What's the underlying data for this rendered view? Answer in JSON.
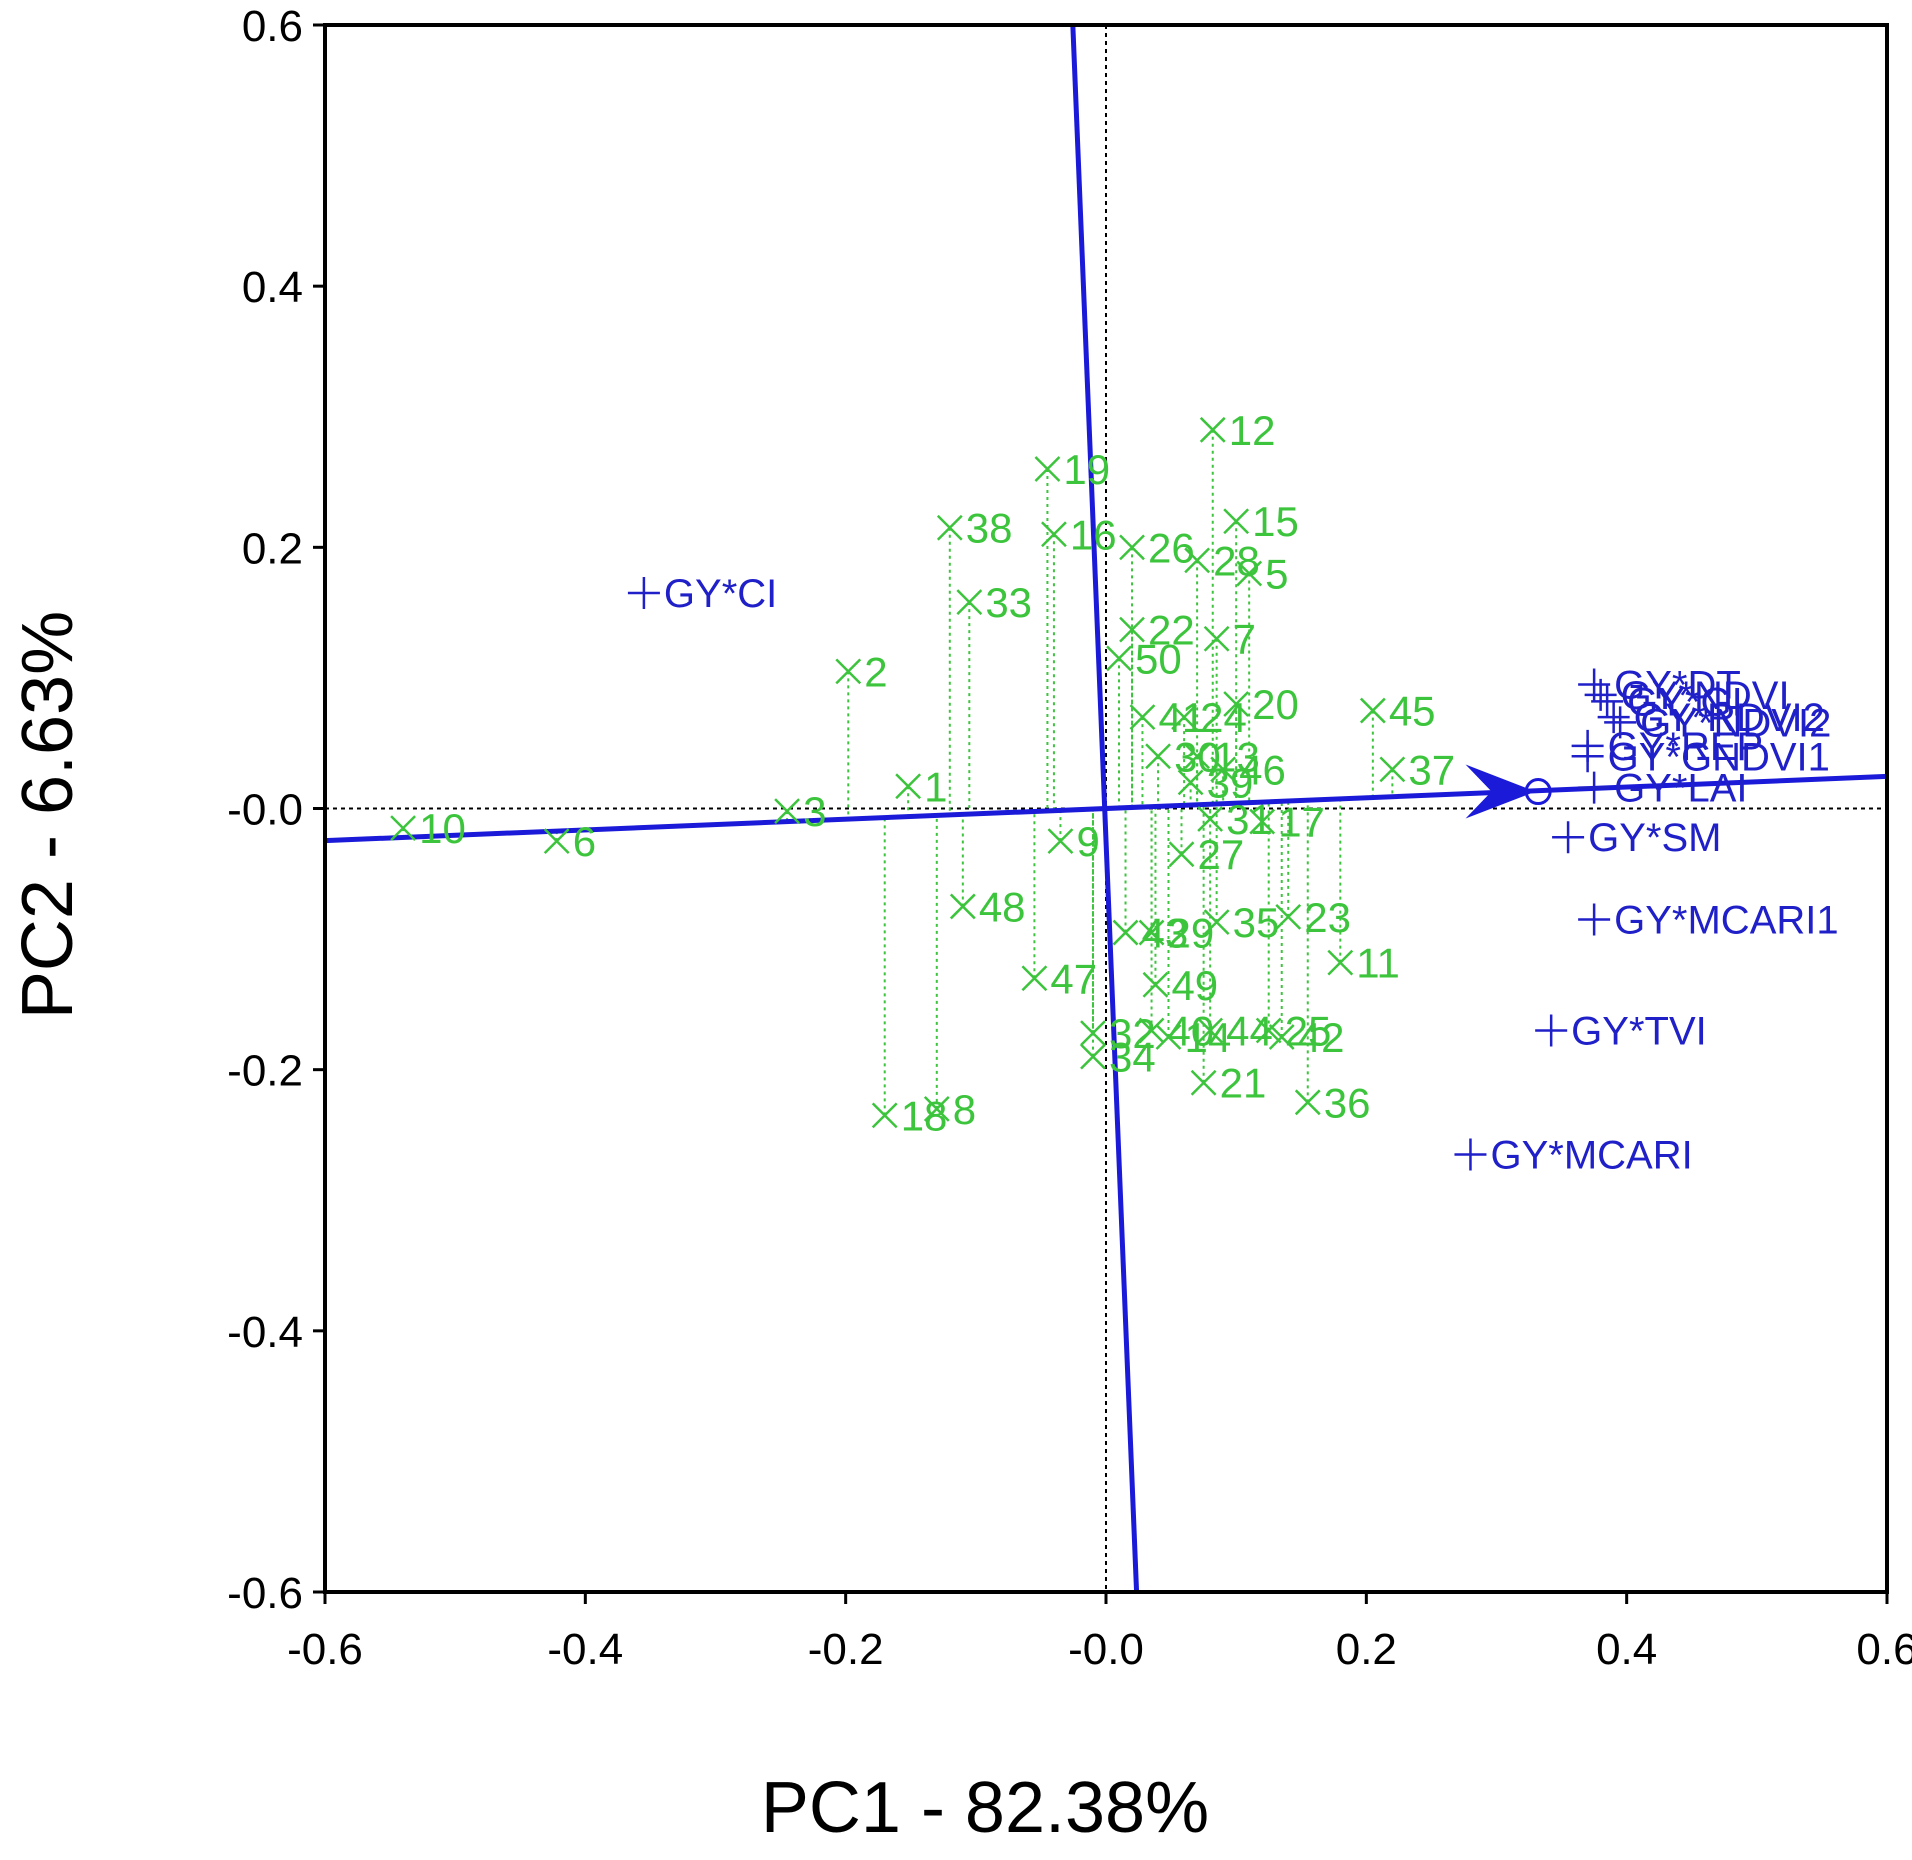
{
  "chart_data": {
    "type": "scatter",
    "subtype": "GGE biplot (discriminativeness vs. representativeness)",
    "xlabel": "PC1 - 82.38%",
    "ylabel": "PC2 - 6.63%",
    "xlim": [
      -0.6,
      0.6
    ],
    "ylim": [
      -0.6,
      0.6
    ],
    "xticks": [
      "-0.6",
      "-0.4",
      "-0.2",
      "-0.0",
      "0.2",
      "0.4",
      "0.6"
    ],
    "yticks": [
      "0.6",
      "0.4",
      "0.2",
      "-0.0",
      "-0.2",
      "-0.4",
      "-0.6"
    ],
    "xtick_values": [
      -0.6,
      -0.4,
      -0.2,
      0.0,
      0.2,
      0.4,
      0.6
    ],
    "ytick_values": [
      0.6,
      0.4,
      0.2,
      0.0,
      -0.2,
      -0.4,
      -0.6
    ],
    "colors": {
      "genotype": "#3cc43c",
      "environment": "#2020c8",
      "axis_line": "#1a1ad8",
      "frame": "#000000"
    },
    "aec": {
      "abscissa_slope": 0.041,
      "ordinate_slope": -24.5,
      "ordinate_x_offset": -0.001,
      "arrow_tip": [
        0.33,
        0.013
      ],
      "circle": [
        0.332,
        0.013
      ]
    },
    "genotypes": [
      {
        "label": "1",
        "x": -0.152,
        "y": 0.017
      },
      {
        "label": "2",
        "x": -0.198,
        "y": 0.105
      },
      {
        "label": "3",
        "x": -0.245,
        "y": -0.002
      },
      {
        "label": "5",
        "x": 0.11,
        "y": 0.18
      },
      {
        "label": "6",
        "x": -0.422,
        "y": -0.025
      },
      {
        "label": "7",
        "x": 0.085,
        "y": 0.13
      },
      {
        "label": "8",
        "x": -0.13,
        "y": -0.23
      },
      {
        "label": "9",
        "x": -0.035,
        "y": -0.025
      },
      {
        "label": "10",
        "x": -0.54,
        "y": -0.015
      },
      {
        "label": "11",
        "x": 0.18,
        "y": -0.118
      },
      {
        "label": "12",
        "x": 0.082,
        "y": 0.29
      },
      {
        "label": "13",
        "x": 0.07,
        "y": 0.04
      },
      {
        "label": "14",
        "x": 0.048,
        "y": -0.175
      },
      {
        "label": "15",
        "x": 0.1,
        "y": 0.22
      },
      {
        "label": "16",
        "x": -0.04,
        "y": 0.21
      },
      {
        "label": "17",
        "x": 0.12,
        "y": -0.01
      },
      {
        "label": "18",
        "x": -0.17,
        "y": -0.235
      },
      {
        "label": "19",
        "x": -0.045,
        "y": 0.26
      },
      {
        "label": "20",
        "x": 0.1,
        "y": 0.08
      },
      {
        "label": "21",
        "x": 0.075,
        "y": -0.21
      },
      {
        "label": "22",
        "x": 0.02,
        "y": 0.137
      },
      {
        "label": "23",
        "x": 0.14,
        "y": -0.083
      },
      {
        "label": "24",
        "x": 0.06,
        "y": 0.07
      },
      {
        "label": "25",
        "x": 0.125,
        "y": -0.17
      },
      {
        "label": "26",
        "x": 0.02,
        "y": 0.2
      },
      {
        "label": "27",
        "x": 0.058,
        "y": -0.035
      },
      {
        "label": "28",
        "x": 0.07,
        "y": 0.19
      },
      {
        "label": "29",
        "x": 0.035,
        "y": -0.095
      },
      {
        "label": "30",
        "x": 0.04,
        "y": 0.04
      },
      {
        "label": "31",
        "x": 0.08,
        "y": -0.008
      },
      {
        "label": "32",
        "x": -0.01,
        "y": -0.172
      },
      {
        "label": "33",
        "x": -0.105,
        "y": 0.158
      },
      {
        "label": "34",
        "x": -0.01,
        "y": -0.19
      },
      {
        "label": "35",
        "x": 0.085,
        "y": -0.087
      },
      {
        "label": "36",
        "x": 0.155,
        "y": -0.225
      },
      {
        "label": "37",
        "x": 0.22,
        "y": 0.03
      },
      {
        "label": "38",
        "x": -0.12,
        "y": 0.215
      },
      {
        "label": "39",
        "x": 0.065,
        "y": 0.02
      },
      {
        "label": "40",
        "x": 0.035,
        "y": -0.17
      },
      {
        "label": "41",
        "x": 0.028,
        "y": 0.07
      },
      {
        "label": "42",
        "x": 0.135,
        "y": -0.175
      },
      {
        "label": "43",
        "x": 0.015,
        "y": -0.095
      },
      {
        "label": "44",
        "x": 0.08,
        "y": -0.17
      },
      {
        "label": "45",
        "x": 0.205,
        "y": 0.075
      },
      {
        "label": "46",
        "x": 0.09,
        "y": 0.03
      },
      {
        "label": "47",
        "x": -0.055,
        "y": -0.13
      },
      {
        "label": "48",
        "x": -0.11,
        "y": -0.075
      },
      {
        "label": "49",
        "x": 0.038,
        "y": -0.135
      },
      {
        "label": "50",
        "x": 0.01,
        "y": 0.115
      }
    ],
    "environments": [
      {
        "label": "GY*CI",
        "x": -0.355,
        "y": 0.165
      },
      {
        "label": "GY*DT",
        "x": 0.375,
        "y": 0.095
      },
      {
        "label": "GY*NDVI",
        "x": 0.38,
        "y": 0.087
      },
      {
        "label": "GY*GI",
        "x": 0.385,
        "y": 0.082
      },
      {
        "label": "GY*RDVI2",
        "x": 0.39,
        "y": 0.07
      },
      {
        "label": "GY*NDVI2",
        "x": 0.395,
        "y": 0.066
      },
      {
        "label": "GY*REP",
        "x": 0.37,
        "y": 0.048
      },
      {
        "label": "GY*GNDVI1",
        "x": 0.37,
        "y": 0.04
      },
      {
        "label": "GY*LAI",
        "x": 0.375,
        "y": 0.016
      },
      {
        "label": "GY*SM",
        "x": 0.355,
        "y": -0.022
      },
      {
        "label": "GY*MCARI1",
        "x": 0.375,
        "y": -0.085
      },
      {
        "label": "GY*TVI",
        "x": 0.342,
        "y": -0.17
      },
      {
        "label": "GY*MCARI",
        "x": 0.28,
        "y": -0.265
      }
    ]
  }
}
